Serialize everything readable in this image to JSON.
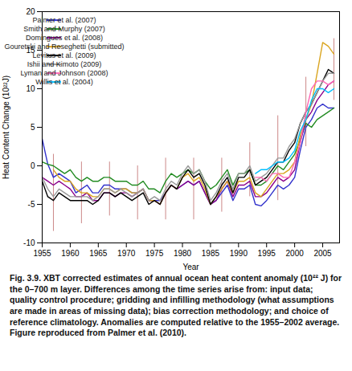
{
  "chart_data": {
    "type": "line",
    "xlabel": "Year",
    "ylabel": "Heat Content Change (10²²J)",
    "caption": "Fig. 3.9. XBT corrected estimates of annual ocean heat content anomaly (10²² J) for the 0–700 m layer. Differences among the time series arise from: input data; quality control procedure; gridding and infilling methodology (what assumptions are made in areas of missing data); bias correction methodology; and choice of reference climatology. Anomalies are computed relative to the 1955–2002 average. Figure reproduced from Palmer et al. (2010).",
    "xlim": [
      1955,
      2008
    ],
    "ylim": [
      -10,
      20
    ],
    "xticks": [
      1955,
      1960,
      1965,
      1970,
      1975,
      1980,
      1985,
      1990,
      1995,
      2000,
      2005
    ],
    "yticks": [
      -10,
      -5,
      0,
      5,
      10,
      15,
      20
    ],
    "grid": false,
    "legend": "upper left",
    "x": [
      1955,
      1956,
      1957,
      1958,
      1959,
      1960,
      1961,
      1962,
      1963,
      1964,
      1965,
      1966,
      1967,
      1968,
      1969,
      1970,
      1971,
      1972,
      1973,
      1974,
      1975,
      1976,
      1977,
      1978,
      1979,
      1980,
      1981,
      1982,
      1983,
      1984,
      1985,
      1986,
      1987,
      1988,
      1989,
      1990,
      1991,
      1992,
      1993,
      1994,
      1995,
      1996,
      1997,
      1998,
      1999,
      2000,
      2001,
      2002,
      2003,
      2004,
      2005,
      2006,
      2007
    ],
    "series": [
      {
        "name": "Palmer et al. (2007)",
        "color": "#3333cc",
        "values": [
          3.5,
          0.2,
          -1.5,
          -1.0,
          -1.5,
          -2.0,
          -3.5,
          -3.0,
          -2.5,
          -3.5,
          -3.5,
          -2.5,
          -2.5,
          -3.0,
          -3.0,
          -3.0,
          -3.5,
          -3.5,
          -3.0,
          -4.5,
          -4.5,
          -4.5,
          -3.5,
          -2.5,
          -3.0,
          -2.5,
          -2.0,
          -2.5,
          -2.0,
          -3.5,
          -5.0,
          -4.5,
          -3.5,
          -2.5,
          -4.5,
          -3.0,
          -3.0,
          -2.5,
          -5.0,
          -5.2,
          -4.5,
          -3.5,
          -2.5,
          -3.0,
          -2.5,
          -1.5,
          2.0,
          5.0,
          6.0,
          7.5,
          8.0,
          7.5,
          7.5
        ]
      },
      {
        "name": "Smith and Murphy (2007)",
        "color": "#228B22",
        "values": [
          0.5,
          0.2,
          0.0,
          -0.5,
          -1.0,
          -0.5,
          -1.5,
          -2.0,
          -1.5,
          -2.0,
          -2.0,
          -1.5,
          -1.5,
          -2.0,
          -2.0,
          -2.0,
          -2.5,
          -2.5,
          -2.0,
          -3.0,
          -3.0,
          -3.5,
          -2.0,
          -1.0,
          -1.5,
          -1.0,
          -0.5,
          -1.0,
          -0.5,
          -2.0,
          -3.0,
          -2.5,
          -1.5,
          -0.5,
          -2.5,
          -1.0,
          -1.0,
          -0.5,
          -2.5,
          -2.5,
          -2.0,
          -1.0,
          0.0,
          -0.5,
          0.5,
          1.5,
          3.5,
          5.5,
          5.0,
          6.0,
          6.5,
          7.0,
          7.5
        ]
      },
      {
        "name": "Domingues et al. (2008)",
        "color": "#8B008B",
        "values": [
          -1.5,
          -2.0,
          -2.5,
          -2.0,
          -2.5,
          -3.0,
          -4.0,
          -4.0,
          -3.5,
          -4.5,
          -4.5,
          -3.5,
          -3.5,
          -4.0,
          -3.5,
          -3.5,
          -4.0,
          -3.5,
          -3.0,
          -4.5,
          -4.5,
          -5.0,
          -3.5,
          -2.5,
          -3.0,
          -2.5,
          -2.0,
          -2.5,
          -2.0,
          -3.5,
          -5.0,
          -4.5,
          -3.0,
          -2.0,
          -4.0,
          -2.5,
          -2.5,
          -2.0,
          -4.0,
          -4.0,
          -3.5,
          -2.5,
          -1.5,
          -2.0,
          -1.5,
          -0.5,
          3.0,
          6.0,
          7.0,
          8.5,
          9.5,
          10.5,
          11.0
        ]
      },
      {
        "name": "Gouretski and Reseghetti (submitted)",
        "color": "#DAA520",
        "values": [
          null,
          null,
          -0.5,
          -1.5,
          -2.0,
          -2.0,
          -3.0,
          -3.5,
          -3.5,
          -4.0,
          -4.0,
          -3.0,
          -3.0,
          -3.5,
          -3.0,
          -3.0,
          -3.5,
          -3.5,
          -3.0,
          -4.5,
          -4.5,
          -5.0,
          -3.5,
          -2.5,
          -3.0,
          -1.5,
          -1.0,
          -2.0,
          -1.5,
          -3.0,
          -5.0,
          -4.0,
          -3.0,
          -2.0,
          -3.5,
          -2.0,
          -2.0,
          -1.5,
          -3.5,
          -4.0,
          -3.0,
          -2.0,
          -1.0,
          -1.0,
          -0.5,
          0.5,
          4.0,
          6.0,
          8.0,
          12.0,
          16.0,
          15.5,
          14.5
        ]
      },
      {
        "name": "Levitus et al. (2009)",
        "color": "#000000",
        "values": [
          -2.0,
          -4.0,
          -4.5,
          -3.5,
          -4.0,
          -4.5,
          -4.5,
          -4.5,
          -4.5,
          -5.0,
          -4.5,
          -3.5,
          -3.5,
          -4.0,
          -3.5,
          -4.0,
          -4.5,
          -4.0,
          -3.5,
          -5.0,
          -4.5,
          -5.0,
          -3.5,
          -2.5,
          -3.0,
          -1.5,
          -0.5,
          -1.5,
          -1.0,
          -2.5,
          -5.0,
          -4.0,
          -2.5,
          -1.5,
          -3.5,
          -1.5,
          -1.5,
          -0.5,
          -2.5,
          -2.0,
          -1.5,
          -0.5,
          0.5,
          0.5,
          2.0,
          3.0,
          5.5,
          7.0,
          8.0,
          9.5,
          11.0,
          12.5,
          12.0
        ]
      },
      {
        "name": "Ishii and Kimoto (2009)",
        "color": "#999999",
        "values": [
          -1.5,
          -3.0,
          -4.0,
          -3.0,
          -3.5,
          -4.0,
          -4.0,
          -4.0,
          -4.0,
          -4.5,
          -4.0,
          -3.0,
          -3.0,
          -3.5,
          -3.0,
          -3.5,
          -4.0,
          -3.5,
          -3.0,
          -4.5,
          -4.0,
          -4.5,
          -3.0,
          -2.0,
          -2.5,
          -1.0,
          0.0,
          -1.0,
          -0.5,
          -2.0,
          -4.5,
          -3.5,
          -2.0,
          -1.0,
          -3.0,
          -1.0,
          -1.0,
          0.0,
          -2.0,
          -1.5,
          -1.0,
          0.0,
          1.0,
          1.0,
          2.5,
          3.5,
          5.5,
          7.0,
          8.0,
          9.5,
          11.0,
          12.0,
          12.0
        ]
      },
      {
        "name": "Lyman and Johnson (2008)",
        "color": "#FF69B4",
        "values": [
          null,
          null,
          null,
          null,
          null,
          null,
          null,
          null,
          null,
          null,
          null,
          null,
          null,
          null,
          null,
          null,
          null,
          null,
          null,
          null,
          null,
          null,
          null,
          null,
          null,
          null,
          null,
          null,
          null,
          null,
          null,
          null,
          null,
          null,
          null,
          null,
          null,
          null,
          -1.5,
          -1.5,
          -2.0,
          -1.0,
          -1.0,
          -1.5,
          -1.5,
          0.5,
          3.0,
          7.0,
          10.0,
          11.0,
          11.0,
          10.5,
          11.0
        ]
      },
      {
        "name": "Willis et al. (2004)",
        "color": "#00BFFF",
        "values": [
          null,
          null,
          null,
          null,
          null,
          null,
          null,
          null,
          null,
          null,
          null,
          null,
          null,
          null,
          null,
          null,
          null,
          null,
          null,
          null,
          null,
          null,
          null,
          null,
          null,
          null,
          null,
          null,
          null,
          null,
          null,
          null,
          null,
          null,
          null,
          null,
          null,
          null,
          -1.0,
          -0.5,
          -0.5,
          0.0,
          0.5,
          0.5,
          1.0,
          2.0,
          4.5,
          6.0,
          8.5,
          10.0,
          10.0,
          9.5,
          10.0
        ]
      }
    ],
    "error_bars": {
      "x": [
        1957,
        1962,
        1967,
        1972,
        1977,
        1982,
        1987,
        1992,
        1997,
        2002,
        2007
      ],
      "centers": [
        -3.5,
        -3.5,
        -3.0,
        -3.5,
        -3.0,
        -3.0,
        -2.5,
        -0.5,
        1.0,
        7.0,
        12.5
      ],
      "errors": [
        5.0,
        4.0,
        3.5,
        3.5,
        4.0,
        4.0,
        3.5,
        3.5,
        5.5,
        4.5,
        4.0
      ],
      "color": "#cc8888"
    }
  }
}
